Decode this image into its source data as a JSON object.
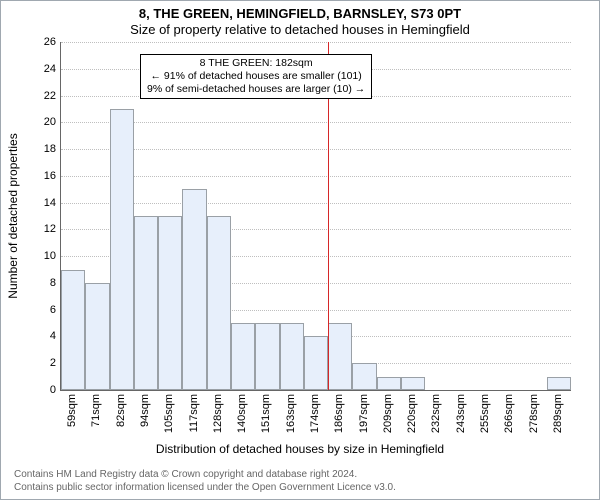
{
  "title": "8, THE GREEN, HEMINGFIELD, BARNSLEY, S73 0PT",
  "subtitle": "Size of property relative to detached houses in Hemingfield",
  "chart": {
    "type": "histogram",
    "ylabel": "Number of detached properties",
    "xlabel": "Distribution of detached houses by size in Hemingfield",
    "ylim": [
      0,
      26
    ],
    "ytick_step": 2,
    "xtick_labels": [
      "59sqm",
      "71sqm",
      "82sqm",
      "94sqm",
      "105sqm",
      "117sqm",
      "128sqm",
      "140sqm",
      "151sqm",
      "163sqm",
      "174sqm",
      "186sqm",
      "197sqm",
      "209sqm",
      "220sqm",
      "232sqm",
      "243sqm",
      "255sqm",
      "266sqm",
      "278sqm",
      "289sqm"
    ],
    "bar_fill": "#e7effb",
    "bar_stroke": "#9aa0a6",
    "grid_color": "#bfbfbf",
    "background_color": "#ffffff",
    "bars": [
      9,
      8,
      21,
      13,
      13,
      15,
      13,
      5,
      5,
      5,
      4,
      5,
      2,
      1,
      1,
      0,
      0,
      0,
      0,
      0,
      1
    ],
    "reference_line": {
      "bin_index": 11,
      "color": "#d62728",
      "width": 1
    },
    "annotation": {
      "lines": [
        "8 THE GREEN: 182sqm",
        "← 91% of detached houses are smaller (101)",
        "9% of semi-detached houses are larger (10) →"
      ]
    }
  },
  "footer": {
    "line1": "Contains HM Land Registry data © Crown copyright and database right 2024.",
    "line2": "Contains public sector information licensed under the Open Government Licence v3.0."
  }
}
